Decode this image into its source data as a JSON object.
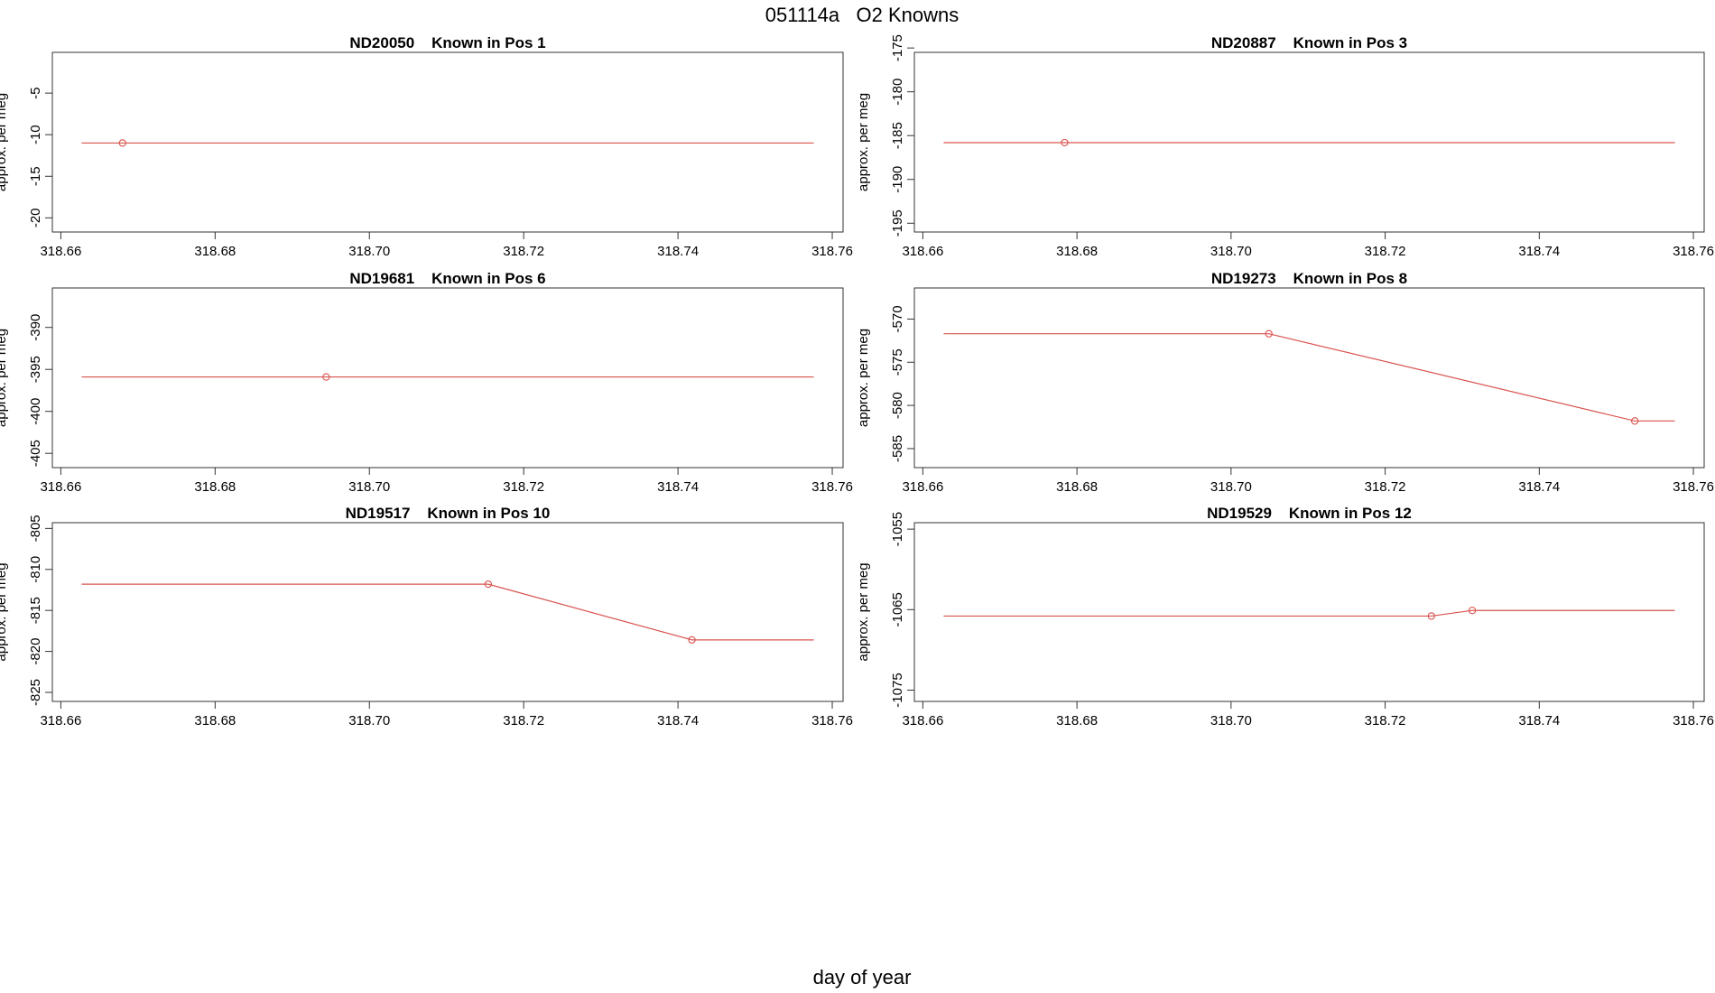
{
  "title": "051114a   O2 Knowns",
  "x_label": "day of year",
  "chart_data": [
    {
      "type": "line",
      "title": "ND20050    Known in Pos 1",
      "y_label": "approx. per meg",
      "xlim": [
        318.6589,
        318.7614
      ],
      "ylim": [
        -21.7,
        -0.1
      ],
      "xticks": [
        318.66,
        318.68,
        {
          "value": 318.7,
          "label": "318.70"
        },
        318.72,
        318.74,
        318.76
      ],
      "yticks": [
        -20,
        -15,
        -10,
        -5
      ],
      "series": [
        {
          "style": "line",
          "color": "#d9534f",
          "x": [
            318.6627,
            318.668,
            318.7576
          ],
          "values": [
            -11,
            -11,
            -11
          ]
        },
        {
          "style": "points",
          "color": "#d9534f",
          "x": [
            318.668
          ],
          "values": [
            -11
          ]
        }
      ]
    },
    {
      "type": "line",
      "title": "ND20887    Known in Pos 3",
      "y_label": "approx. per meg",
      "xlim": [
        318.6589,
        318.7614
      ],
      "ylim": [
        -196,
        -175.5
      ],
      "xticks": [
        318.66,
        318.68,
        {
          "value": 318.7,
          "label": "318.70"
        },
        318.72,
        318.74,
        318.76
      ],
      "yticks": [
        -195,
        -190,
        -185,
        -180,
        -175
      ],
      "series": [
        {
          "style": "line",
          "color": "#d9534f",
          "x": [
            318.6627,
            318.6784,
            318.7576
          ],
          "values": [
            -185.8,
            -185.8,
            -185.8
          ]
        },
        {
          "style": "points",
          "color": "#d9534f",
          "x": [
            318.6784
          ],
          "values": [
            -185.8
          ]
        }
      ]
    },
    {
      "type": "line",
      "title": "ND19681    Known in Pos 6",
      "y_label": "approx. per meg",
      "xlim": [
        318.6589,
        318.7614
      ],
      "ylim": [
        -406.7,
        -385.3
      ],
      "xticks": [
        318.66,
        318.68,
        {
          "value": 318.7,
          "label": "318.70"
        },
        318.72,
        318.74,
        318.76
      ],
      "yticks": [
        -405,
        -400,
        -395,
        -390
      ],
      "series": [
        {
          "style": "line",
          "color": "#d9534f",
          "x": [
            318.6627,
            318.6944,
            318.7576
          ],
          "values": [
            -395.9,
            -395.9,
            -395.9
          ]
        },
        {
          "style": "points",
          "color": "#d9534f",
          "x": [
            318.6944
          ],
          "values": [
            -395.9
          ]
        }
      ]
    },
    {
      "type": "line",
      "title": "ND19273    Known in Pos 8",
      "y_label": "approx. per meg",
      "xlim": [
        318.6589,
        318.7614
      ],
      "ylim": [
        -587.2,
        -566.4
      ],
      "xticks": [
        318.66,
        318.68,
        {
          "value": 318.7,
          "label": "318.70"
        },
        318.72,
        318.74,
        318.76
      ],
      "yticks": [
        -585,
        -580,
        -575,
        -570
      ],
      "series": [
        {
          "style": "line",
          "color": "#d9534f",
          "x": [
            318.6627,
            318.7049,
            318.7524,
            318.7576
          ],
          "values": [
            -571.7,
            -571.7,
            -581.8,
            -581.8
          ]
        },
        {
          "style": "points",
          "color": "#d9534f",
          "x": [
            318.7049,
            318.7524
          ],
          "values": [
            -571.7,
            -581.8
          ]
        }
      ]
    },
    {
      "type": "line",
      "title": "ND19517    Known in Pos 10",
      "y_label": "approx. per meg",
      "xlim": [
        318.6589,
        318.7614
      ],
      "ylim": [
        -826.1,
        -804.3
      ],
      "xticks": [
        318.66,
        318.68,
        {
          "value": 318.7,
          "label": "318.70"
        },
        318.72,
        318.74,
        318.76
      ],
      "yticks": [
        -825,
        -820,
        -815,
        -810,
        -805
      ],
      "series": [
        {
          "style": "line",
          "color": "#d9534f",
          "x": [
            318.6627,
            318.7154,
            318.7418,
            318.7576
          ],
          "values": [
            -811.8,
            -811.8,
            -818.6,
            -818.6
          ]
        },
        {
          "style": "points",
          "color": "#d9534f",
          "x": [
            318.7154,
            318.7418
          ],
          "values": [
            -811.8,
            -818.6
          ]
        }
      ]
    },
    {
      "type": "line",
      "title": "ND19529    Known in Pos 12",
      "y_label": "approx. per meg",
      "xlim": [
        318.6589,
        318.7614
      ],
      "ylim": [
        -1076.4,
        -1054.2
      ],
      "xticks": [
        318.66,
        318.68,
        {
          "value": 318.7,
          "label": "318.70"
        },
        318.72,
        318.74,
        318.76
      ],
      "yticks": [
        -1075,
        -1065,
        -1055
      ],
      "series": [
        {
          "style": "line",
          "color": "#d9534f",
          "x": [
            318.6627,
            318.726,
            318.7313,
            318.7576
          ],
          "values": [
            -1065.8,
            -1065.8,
            -1065.1,
            -1065.1
          ]
        },
        {
          "style": "points",
          "color": "#d9534f",
          "x": [
            318.726,
            318.7313
          ],
          "values": [
            -1065.8,
            -1065.1
          ]
        }
      ]
    }
  ]
}
